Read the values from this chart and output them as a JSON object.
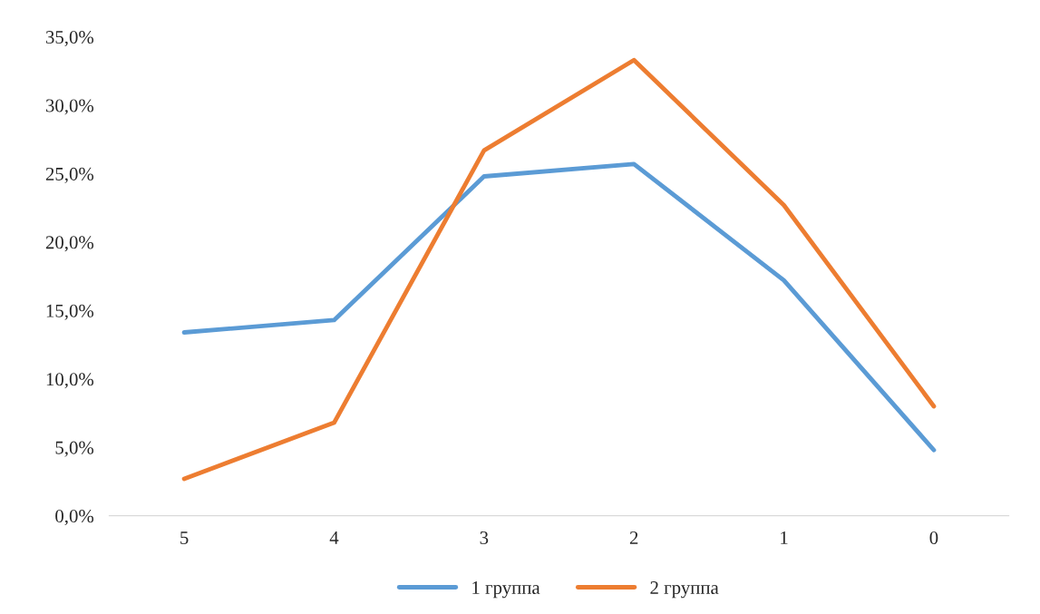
{
  "chart_data": {
    "type": "line",
    "categories": [
      "5",
      "4",
      "3",
      "2",
      "1",
      "0"
    ],
    "series": [
      {
        "name": "1 группа",
        "color": "#5b9bd5",
        "values": [
          13.4,
          14.3,
          24.8,
          25.7,
          17.2,
          4.8
        ]
      },
      {
        "name": "2 группа",
        "color": "#ed7d31",
        "values": [
          2.7,
          6.8,
          26.7,
          33.3,
          22.7,
          8.0
        ]
      }
    ],
    "ylim": [
      0,
      35
    ],
    "yticks": [
      {
        "value": 0,
        "label": "0,0%"
      },
      {
        "value": 5,
        "label": "5,0%"
      },
      {
        "value": 10,
        "label": "10,0%"
      },
      {
        "value": 15,
        "label": "15,0%"
      },
      {
        "value": 20,
        "label": "20,0%"
      },
      {
        "value": 25,
        "label": "25,0%"
      },
      {
        "value": 30,
        "label": "30,0%"
      },
      {
        "value": 35,
        "label": "35,0%"
      }
    ],
    "grid": false,
    "legend": "bottom",
    "marker": "none",
    "line_style": "solid"
  }
}
